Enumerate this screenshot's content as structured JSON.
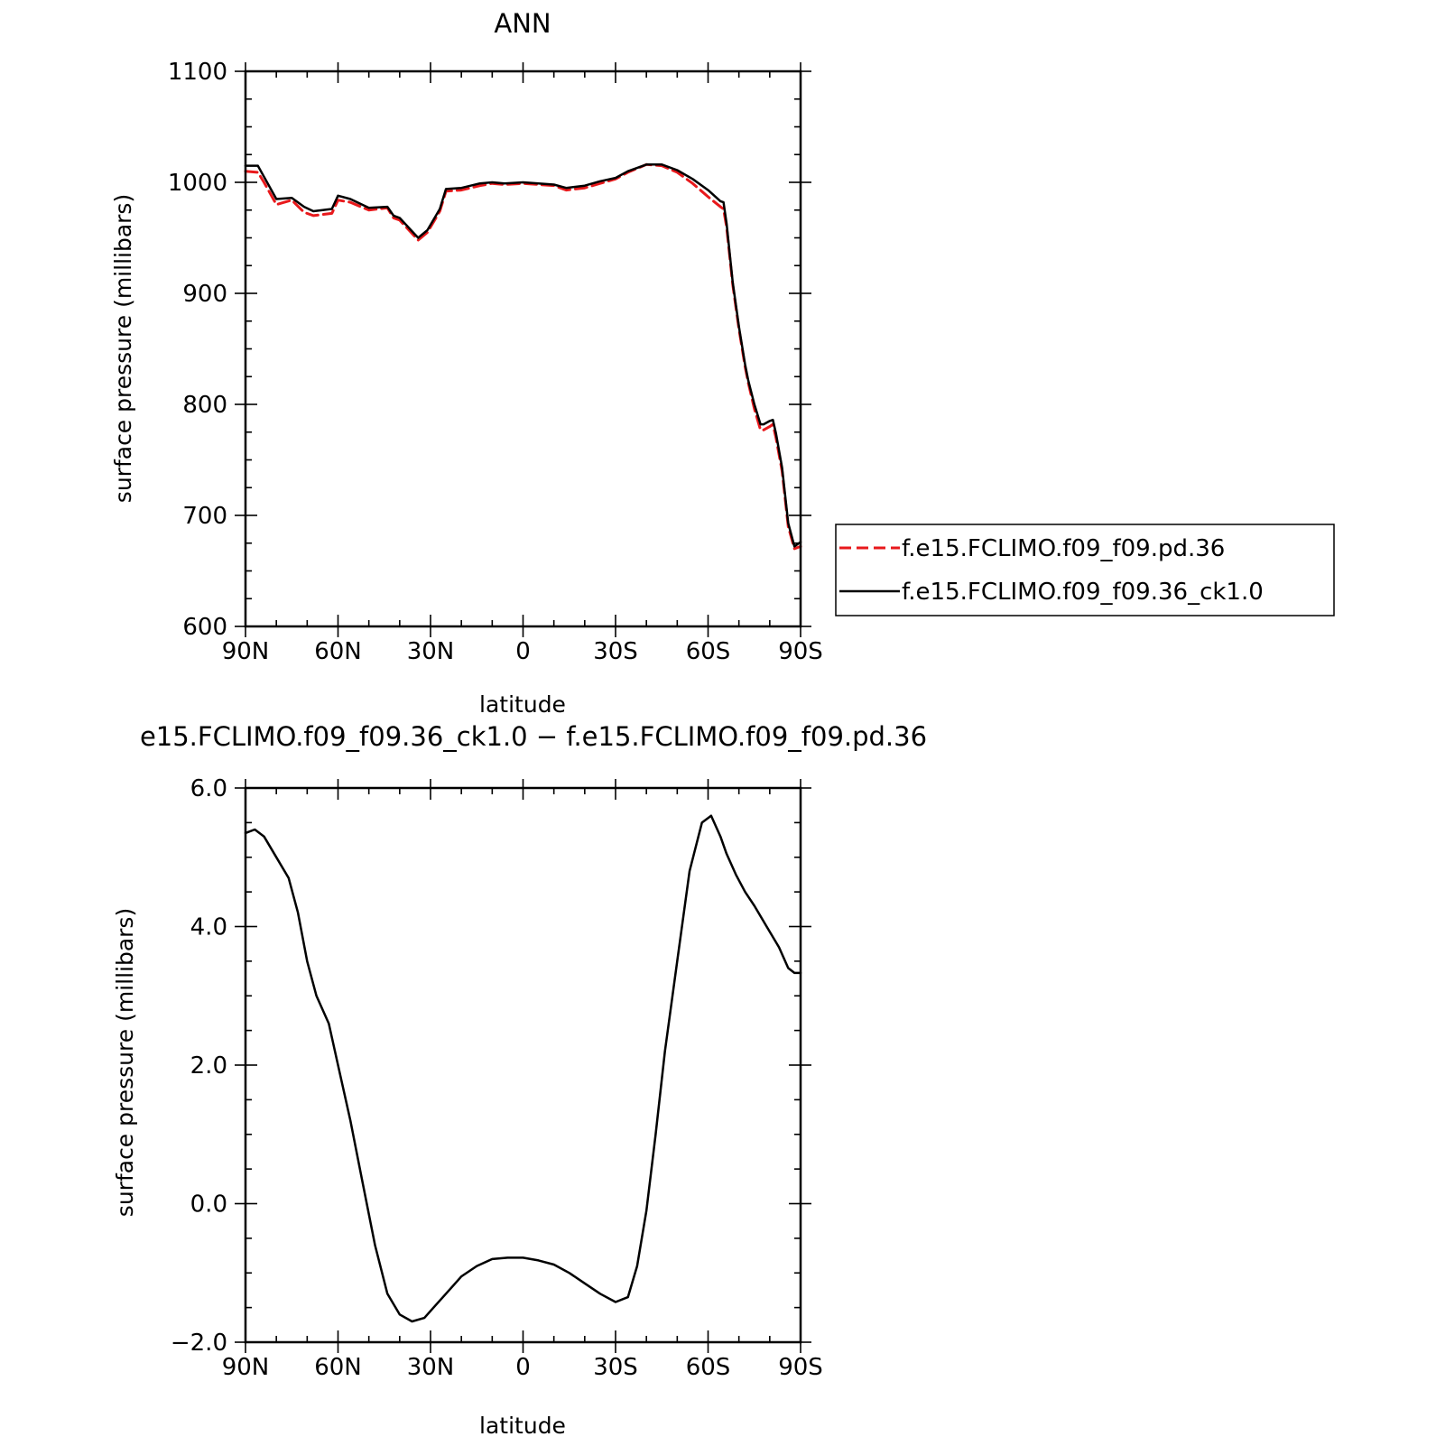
{
  "chart_data": [
    {
      "type": "line",
      "title": "ANN",
      "xlabel": "latitude",
      "ylabel": "surface pressure (millibars)",
      "xlim": [
        90,
        -90
      ],
      "ylim": [
        600,
        1100
      ],
      "x_ticks": [
        90,
        60,
        30,
        0,
        -30,
        -60,
        -90
      ],
      "x_tick_labels": [
        "90N",
        "60N",
        "30N",
        "0",
        "30S",
        "60S",
        "90S"
      ],
      "y_ticks": [
        600,
        700,
        800,
        900,
        1000,
        1100
      ],
      "y_tick_labels": [
        "600",
        "700",
        "800",
        "900",
        "1000",
        "1100"
      ],
      "legend_position": "right",
      "series": [
        {
          "name": "f.e15.FCLIMO.f09_f09.pd.36",
          "color": "#e8191c",
          "style": "dashed",
          "x": [
            90,
            86,
            84,
            80,
            75,
            71,
            68,
            62,
            60,
            56,
            50,
            44,
            42,
            40,
            34,
            31,
            27,
            25,
            20,
            14,
            10,
            6,
            0,
            -10,
            -14,
            -20,
            -25,
            -30,
            -34,
            -40,
            -45,
            -50,
            -55,
            -60,
            -64,
            -65,
            -66,
            -68,
            -70,
            -72,
            -73,
            -75,
            -77,
            -78,
            -80,
            -81,
            -82,
            -84,
            -86,
            -88,
            -90
          ],
          "y": [
            1010,
            1009,
            1000,
            980,
            984,
            973,
            970,
            972,
            984,
            982,
            975,
            977,
            968,
            966,
            948,
            955,
            974,
            992,
            993,
            997,
            999,
            998,
            999,
            997,
            993,
            995,
            999,
            1003,
            1009,
            1016,
            1015,
            1009,
            999,
            987,
            978,
            976,
            960,
            908,
            868,
            834,
            820,
            796,
            777,
            777,
            780,
            782,
            770,
            740,
            690,
            670,
            672
          ]
        },
        {
          "name": "f.e15.FCLIMO.f09_f09.36_ck1.0",
          "color": "#000000",
          "style": "solid",
          "x": [
            90,
            86,
            84,
            80,
            75,
            71,
            68,
            62,
            60,
            56,
            50,
            44,
            42,
            40,
            34,
            31,
            27,
            25,
            20,
            14,
            10,
            6,
            0,
            -10,
            -14,
            -20,
            -25,
            -30,
            -34,
            -40,
            -45,
            -50,
            -55,
            -60,
            -64,
            -65,
            -66,
            -68,
            -70,
            -72,
            -73,
            -75,
            -77,
            -78,
            -80,
            -81,
            -82,
            -84,
            -86,
            -88,
            -90
          ],
          "y": [
            1015,
            1015,
            1005,
            985,
            986,
            978,
            974,
            976,
            988,
            985,
            977,
            978,
            970,
            968,
            950,
            957,
            976,
            994,
            995,
            999,
            1000,
            999,
            1000,
            998,
            995,
            997,
            1001,
            1004,
            1010,
            1016,
            1016,
            1011,
            1003,
            993,
            983,
            982,
            963,
            910,
            870,
            836,
            822,
            800,
            782,
            782,
            785,
            786,
            774,
            743,
            693,
            672,
            676
          ]
        }
      ]
    },
    {
      "type": "line",
      "title": "e15.FCLIMO.f09_f09.36_ck1.0 − f.e15.FCLIMO.f09_f09.pd.36",
      "xlabel": "latitude",
      "ylabel": "surface pressure (millibars)",
      "xlim": [
        90,
        -90
      ],
      "ylim": [
        -2.0,
        6.0
      ],
      "x_ticks": [
        90,
        60,
        30,
        0,
        -30,
        -60,
        -90
      ],
      "x_tick_labels": [
        "90N",
        "60N",
        "30N",
        "0",
        "30S",
        "60S",
        "90S"
      ],
      "y_ticks": [
        -2.0,
        0.0,
        2.0,
        4.0,
        6.0
      ],
      "y_tick_labels": [
        "−2.0",
        "0.0",
        "2.0",
        "4.0",
        "6.0"
      ],
      "series": [
        {
          "color": "#000000",
          "style": "solid",
          "x": [
            90,
            87,
            84,
            80,
            76,
            73,
            70,
            67,
            63,
            60,
            56,
            52,
            48,
            44,
            40,
            36,
            32,
            29,
            25,
            20,
            15,
            10,
            5,
            0,
            -5,
            -10,
            -15,
            -20,
            -25,
            -30,
            -34,
            -37,
            -40,
            -43,
            -46,
            -50,
            -54,
            -58,
            -61,
            -64,
            -66,
            -69,
            -72,
            -75,
            -79,
            -83,
            -86,
            -88,
            -90
          ],
          "y": [
            5.35,
            5.4,
            5.3,
            5.0,
            4.7,
            4.2,
            3.5,
            3.0,
            2.6,
            2.0,
            1.2,
            0.3,
            -0.6,
            -1.3,
            -1.6,
            -1.7,
            -1.65,
            -1.5,
            -1.3,
            -1.05,
            -0.9,
            -0.8,
            -0.78,
            -0.78,
            -0.82,
            -0.88,
            -1.0,
            -1.15,
            -1.3,
            -1.42,
            -1.35,
            -0.9,
            -0.1,
            1.0,
            2.2,
            3.5,
            4.8,
            5.5,
            5.6,
            5.3,
            5.05,
            4.75,
            4.5,
            4.3,
            4.0,
            3.7,
            3.4,
            3.33,
            3.33
          ]
        }
      ]
    }
  ]
}
